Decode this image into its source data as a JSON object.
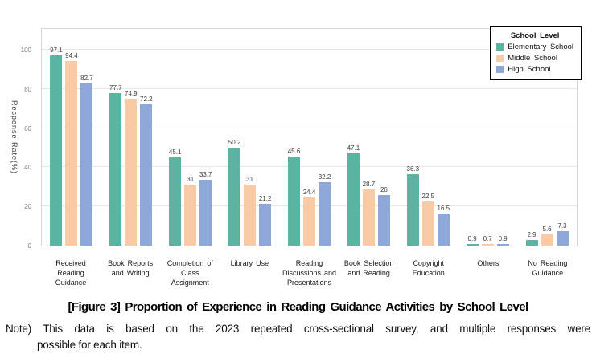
{
  "figure": {
    "title": "[Figure 3] Proportion of Experience in Reading Guidance Activities by School Level",
    "note_line1": "Note) This data is based on the 2023 repeated cross-sectional survey, and multiple responses were",
    "note_line2": "possible for each item."
  },
  "chart_data": {
    "type": "bar",
    "title": "",
    "xlabel": "",
    "ylabel": "Response Rate(%)",
    "ylim": [
      0,
      100
    ],
    "ytick_step": 20,
    "grid": true,
    "legend_title": "School Level",
    "legend_position": "top-right",
    "categories": [
      "Received Reading Guidance",
      "Book Reports and Writing",
      "Completion of Class Assignment",
      "Library Use",
      "Reading Discussions and Presentations",
      "Book Selection and Reading",
      "Copyright Education",
      "Others",
      "No Reading Guidance"
    ],
    "series": [
      {
        "name": "Elementary School",
        "color": "#5bb3a1",
        "values": [
          97.1,
          77.7,
          45.1,
          50.2,
          45.6,
          47.1,
          36.3,
          0.9,
          2.9
        ]
      },
      {
        "name": "Middle School",
        "color": "#f8cba6",
        "values": [
          94.4,
          74.9,
          31,
          31,
          24.4,
          28.7,
          22.5,
          0.7,
          5.6
        ]
      },
      {
        "name": "High School",
        "color": "#8ca7d8",
        "values": [
          82.7,
          72.2,
          33.7,
          21.2,
          32.2,
          26,
          16.5,
          0.9,
          7.3
        ]
      }
    ]
  }
}
